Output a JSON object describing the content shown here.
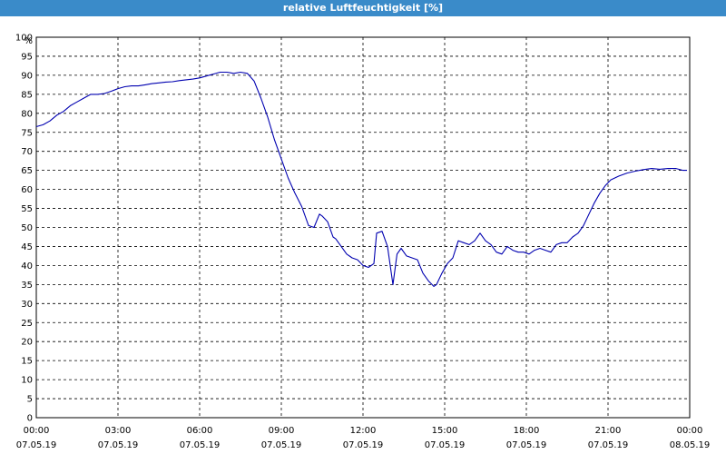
{
  "window": {
    "title": "relative Luftfeuchtigkeit [%]"
  },
  "colors": {
    "title_bar": "#3a8bc9",
    "series_line": "#0000b0",
    "grid": "#000000"
  },
  "chart_data": {
    "type": "line",
    "title": "relative Luftfeuchtigkeit [%]",
    "ylabel": "%",
    "xlabel": "",
    "ylim": [
      0,
      100
    ],
    "xlim_hours": [
      0,
      24
    ],
    "y_ticks": [
      0,
      5,
      10,
      15,
      20,
      25,
      30,
      35,
      40,
      45,
      50,
      55,
      60,
      65,
      70,
      75,
      80,
      85,
      90,
      95,
      100
    ],
    "x_ticks": [
      {
        "hour": 0,
        "time": "00:00",
        "date": "07.05.19"
      },
      {
        "hour": 3,
        "time": "03:00",
        "date": "07.05.19"
      },
      {
        "hour": 6,
        "time": "06:00",
        "date": "07.05.19"
      },
      {
        "hour": 9,
        "time": "09:00",
        "date": "07.05.19"
      },
      {
        "hour": 12,
        "time": "12:00",
        "date": "07.05.19"
      },
      {
        "hour": 15,
        "time": "15:00",
        "date": "07.05.19"
      },
      {
        "hour": 18,
        "time": "18:00",
        "date": "07.05.19"
      },
      {
        "hour": 21,
        "time": "21:00",
        "date": "07.05.19"
      },
      {
        "hour": 24,
        "time": "00:00",
        "date": "08.05.19"
      }
    ],
    "grid": true,
    "grid_style": "dashed",
    "legend": "none",
    "series": [
      {
        "x": [
          0,
          0.25,
          0.5,
          0.75,
          1.0,
          1.25,
          1.5,
          1.75,
          2.0,
          2.25,
          2.5,
          2.75,
          3.0,
          3.25,
          3.5,
          3.75,
          4.0,
          4.25,
          4.5,
          4.75,
          5.0,
          5.25,
          5.5,
          5.75,
          6.0,
          6.25,
          6.5,
          6.75,
          7.0,
          7.25,
          7.5,
          7.75,
          8.0,
          8.25,
          8.5,
          8.75,
          9.0,
          9.25,
          9.5,
          9.75,
          10.0,
          10.2,
          10.4,
          10.5,
          10.7,
          10.9,
          11.0,
          11.2,
          11.4,
          11.6,
          11.8,
          12.0,
          12.2,
          12.4,
          12.5,
          12.7,
          12.9,
          13.0,
          13.1,
          13.25,
          13.4,
          13.6,
          13.8,
          14.0,
          14.2,
          14.4,
          14.6,
          14.7,
          14.9,
          15.1,
          15.3,
          15.5,
          15.7,
          15.9,
          16.1,
          16.3,
          16.5,
          16.7,
          16.9,
          17.1,
          17.3,
          17.5,
          17.7,
          17.9,
          18.1,
          18.3,
          18.5,
          18.7,
          18.9,
          19.1,
          19.3,
          19.5,
          19.7,
          19.9,
          20.1,
          20.3,
          20.5,
          20.7,
          20.9,
          21.1,
          21.4,
          21.7,
          22.0,
          22.3,
          22.6,
          22.9,
          23.2,
          23.5,
          23.75,
          23.9
        ],
        "y": [
          76.5,
          77,
          78,
          79.5,
          80.5,
          82,
          83,
          84,
          85,
          85,
          85.2,
          85.8,
          86.5,
          87,
          87.2,
          87.2,
          87.5,
          87.8,
          88,
          88.2,
          88.3,
          88.6,
          88.8,
          89,
          89.3,
          89.8,
          90.3,
          90.8,
          90.8,
          90.5,
          90.8,
          90.5,
          88.5,
          84,
          79,
          73,
          68,
          63,
          59,
          55.5,
          50.5,
          50,
          53.5,
          53,
          51.5,
          47.5,
          47,
          45,
          43,
          42,
          41.5,
          40,
          39.5,
          40.5,
          48.5,
          49,
          45,
          40,
          35,
          43,
          44.5,
          42.5,
          42,
          41.5,
          38,
          36,
          34.5,
          35,
          38,
          40.5,
          42,
          46.5,
          46,
          45.5,
          46.5,
          48.5,
          46.5,
          45.5,
          43.5,
          43,
          45,
          44,
          43.5,
          43.5,
          43,
          44,
          44.5,
          44,
          43.5,
          45.5,
          46,
          46,
          47.5,
          48.5,
          50.5,
          53.5,
          56.5,
          59,
          61,
          62.5,
          63.5,
          64.3,
          64.8,
          65.2,
          65.5,
          65.3,
          65.5,
          65.5,
          65,
          65
        ]
      }
    ]
  }
}
